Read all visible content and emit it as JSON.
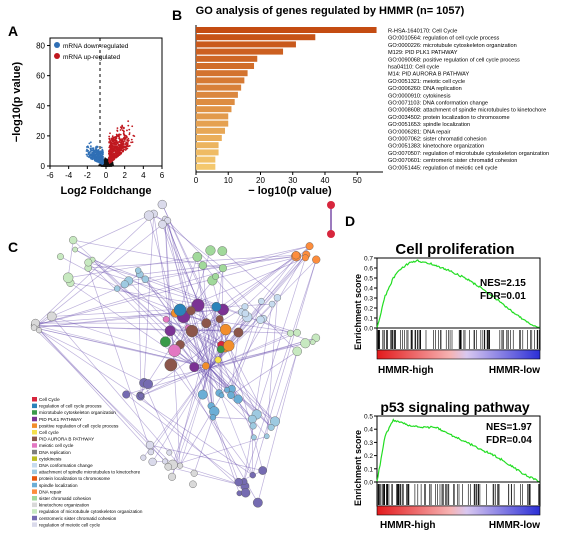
{
  "panels": {
    "A": "A",
    "B": "B",
    "C": "C",
    "D": "D"
  },
  "panel_a": {
    "ylabel": "−log10(p value)",
    "xlabel": "Log2 Foldchange",
    "legend": [
      {
        "label": "mRNA down-regulated",
        "color": "#2f6fb5"
      },
      {
        "label": "mRNA up-regulated",
        "color": "#c0181f"
      }
    ],
    "chart_data": {
      "type": "scatter",
      "xlabel": "Log2 Foldchange",
      "ylabel": "−log10(p value)",
      "xlim": [
        -6,
        6
      ],
      "ylim": [
        0,
        85
      ],
      "xticks": [
        "-6",
        "-4",
        "-2",
        "0",
        "2",
        "4",
        "6"
      ],
      "yticks": [
        "0",
        "20",
        "40",
        "60",
        "80"
      ]
    }
  },
  "panel_b": {
    "title": "GO analysis of genes regulated by HMMR (n= 1057)",
    "xlabel": "− log10(p value)",
    "xticks": [
      "0",
      "10",
      "20",
      "30",
      "40",
      "50"
    ],
    "chart_data": {
      "type": "bar",
      "orientation": "horizontal",
      "xlim": [
        0,
        58
      ],
      "categories": [
        "R-HSA-1640170: Cell Cycle",
        "GO:0010564: regulation of cell cycle process",
        "GO:0000226: microtubule cytoskeleton organization",
        "M129: PID PLK1 PATHWAY",
        "GO:0090068: positive regulation of cell cycle process",
        "hsa04110: Cell cycle",
        "M14: PID AURORA B PATHWAY",
        "GO:0051321: meiotic cell cycle",
        "GO:0006260: DNA replication",
        "GO:0000910: cytokinesis",
        "GO:0071103: DNA conformation change",
        "GO:0008608: attachment of spindle microtubules to kinetochore",
        "GO:0034502: protein localization to chromosome",
        "GO:0051653: spindle localization",
        "GO:0006281: DNA repair",
        "GO:0007062: sister chromatid cohesion",
        "GO:0051383: kinetochore organization",
        "GO:0070507: regulation of microtubule cytoskeleton organization",
        "GO:0070601: centromeric sister chromatid cohesion",
        "GO:0051445: regulation of meiotic cell cycle"
      ],
      "values": [
        56,
        37,
        31,
        27,
        19,
        18,
        16,
        15,
        14,
        13,
        12,
        11,
        10,
        10,
        9,
        8,
        7,
        7,
        6,
        6
      ]
    }
  },
  "panel_c": {
    "legend": [
      {
        "label": "Cell Cycle",
        "color": "#d7263d"
      },
      {
        "label": "regulation of cell cycle process",
        "color": "#2b83ba"
      },
      {
        "label": "microtubule cytoskeleton organization",
        "color": "#3a9a4a"
      },
      {
        "label": "PID PLK1 PATHWAY",
        "color": "#7b3294"
      },
      {
        "label": "positive regulation of cell cycle process",
        "color": "#f28e2b"
      },
      {
        "label": "Cell cycle",
        "color": "#f6e04b"
      },
      {
        "label": "PID AURORA B PATHWAY",
        "color": "#8c564b"
      },
      {
        "label": "meiotic cell cycle",
        "color": "#e377c2"
      },
      {
        "label": "DNA replication",
        "color": "#7f7f7f"
      },
      {
        "label": "cytokinesis",
        "color": "#bcbd22"
      },
      {
        "label": "DNA conformation change",
        "color": "#c6dbef"
      },
      {
        "label": "attachment of spindle microtubules to kinetochore",
        "color": "#9ecae1"
      },
      {
        "label": "protein localization to chromosome",
        "color": "#e6550d"
      },
      {
        "label": "spindle localization",
        "color": "#6baed6"
      },
      {
        "label": "DNA repair",
        "color": "#fd8d3c"
      },
      {
        "label": "sister chromatid cohesion",
        "color": "#a1d99b"
      },
      {
        "label": "kinetochore organization",
        "color": "#d9d9d9"
      },
      {
        "label": "regulation of microtubule cytoskeleton organization",
        "color": "#c7e9c0"
      },
      {
        "label": "centromeric sister chromatid cohesion",
        "color": "#756bb1"
      },
      {
        "label": "regulation of meiotic cell cycle",
        "color": "#dadaeb"
      }
    ]
  },
  "panel_d": {
    "gsea": [
      {
        "title": "Cell proliferation",
        "nes": "NES=2.15",
        "fdr": "FDR=0.01",
        "ylabel": "Enrichment score",
        "high_label": "HMMR-high",
        "low_label": "HMMR-low",
        "yticks": [
          "0.0",
          "0.1",
          "0.2",
          "0.3",
          "0.4",
          "0.5",
          "0.6",
          "0.7"
        ],
        "chart_data": {
          "type": "line",
          "ylim": [
            0,
            0.7
          ],
          "x": [
            0,
            0.05,
            0.1,
            0.15,
            0.2,
            0.25,
            0.3,
            0.35,
            0.4,
            0.45,
            0.5,
            0.55,
            0.6,
            0.65,
            0.7,
            0.75,
            0.8,
            0.85,
            0.9,
            0.95,
            1
          ],
          "y": [
            0,
            0.32,
            0.5,
            0.6,
            0.65,
            0.67,
            0.66,
            0.63,
            0.6,
            0.57,
            0.53,
            0.49,
            0.44,
            0.39,
            0.33,
            0.27,
            0.2,
            0.14,
            0.08,
            0.03,
            0
          ]
        }
      },
      {
        "title": "p53 signaling pathway",
        "nes": "NES=1.97",
        "fdr": "FDR=0.04",
        "ylabel": "Enrichment score",
        "high_label": "HMMR-high",
        "low_label": "HMMR-low",
        "yticks": [
          "0.0",
          "0.1",
          "0.2",
          "0.3",
          "0.4",
          "0.5"
        ],
        "chart_data": {
          "type": "line",
          "ylim": [
            0,
            0.5
          ],
          "x": [
            0,
            0.05,
            0.1,
            0.15,
            0.2,
            0.25,
            0.3,
            0.35,
            0.4,
            0.45,
            0.5,
            0.55,
            0.6,
            0.65,
            0.7,
            0.75,
            0.8,
            0.85,
            0.9,
            0.95,
            1
          ],
          "y": [
            0,
            0.35,
            0.47,
            0.45,
            0.43,
            0.42,
            0.41,
            0.42,
            0.39,
            0.36,
            0.33,
            0.3,
            0.27,
            0.24,
            0.21,
            0.18,
            0.14,
            0.1,
            0.06,
            0.03,
            0
          ]
        }
      }
    ]
  }
}
